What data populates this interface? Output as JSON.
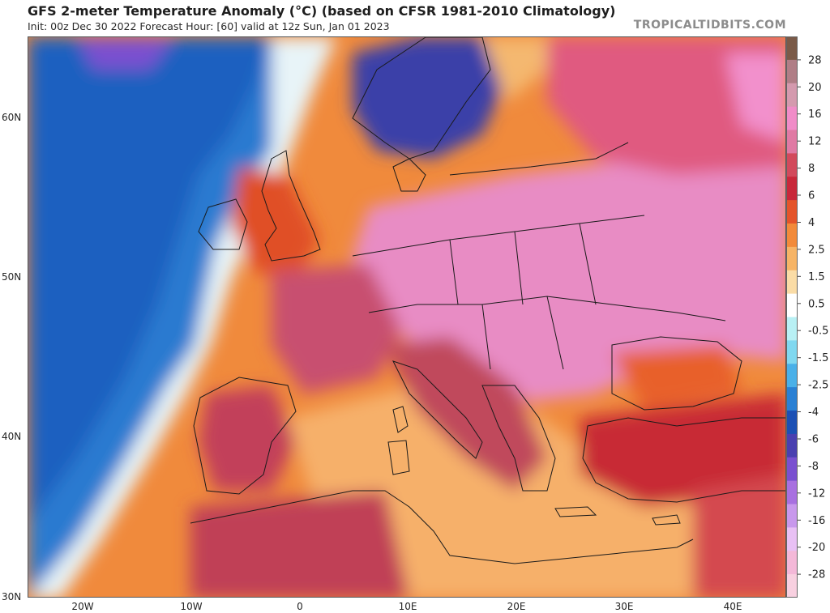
{
  "header": {
    "title": "GFS 2-meter Temperature Anomaly (°C) (based on CFSR 1981-2010 Climatology)",
    "subtitle": "Init: 00z Dec 30 2022   Forecast Hour: [60]   valid at 12z Sun, Jan 01 2023",
    "brand": "TROPICALTIDBITS.COM"
  },
  "map": {
    "lat_labels": [
      "60N",
      "50N",
      "40N",
      "30N"
    ],
    "lon_labels": [
      "20W",
      "10W",
      "0",
      "10E",
      "20E",
      "30E",
      "40E"
    ]
  },
  "legend": {
    "unit": "°C",
    "ticks": [
      "28",
      "20",
      "16",
      "12",
      "8",
      "6",
      "4",
      "2.5",
      "1.5",
      "0.5",
      "-0.5",
      "-1.5",
      "-2.5",
      "-4",
      "-6",
      "-8",
      "-12",
      "-16",
      "-20",
      "-28"
    ],
    "colors": [
      "#7a5a48",
      "#b07e86",
      "#d49aae",
      "#f08cc8",
      "#e07aa4",
      "#d24a5c",
      "#c8283a",
      "#e4542a",
      "#f28a3a",
      "#f6b466",
      "#fadca6",
      "#ffffff",
      "#b8f0f4",
      "#80d8f0",
      "#4ab0e8",
      "#2a80d4",
      "#1c50b4",
      "#4a40b0",
      "#7a50d0",
      "#a870e0",
      "#c898ec",
      "#e8c0f4",
      "#f4b8d8",
      "#f8d0e0"
    ]
  }
}
